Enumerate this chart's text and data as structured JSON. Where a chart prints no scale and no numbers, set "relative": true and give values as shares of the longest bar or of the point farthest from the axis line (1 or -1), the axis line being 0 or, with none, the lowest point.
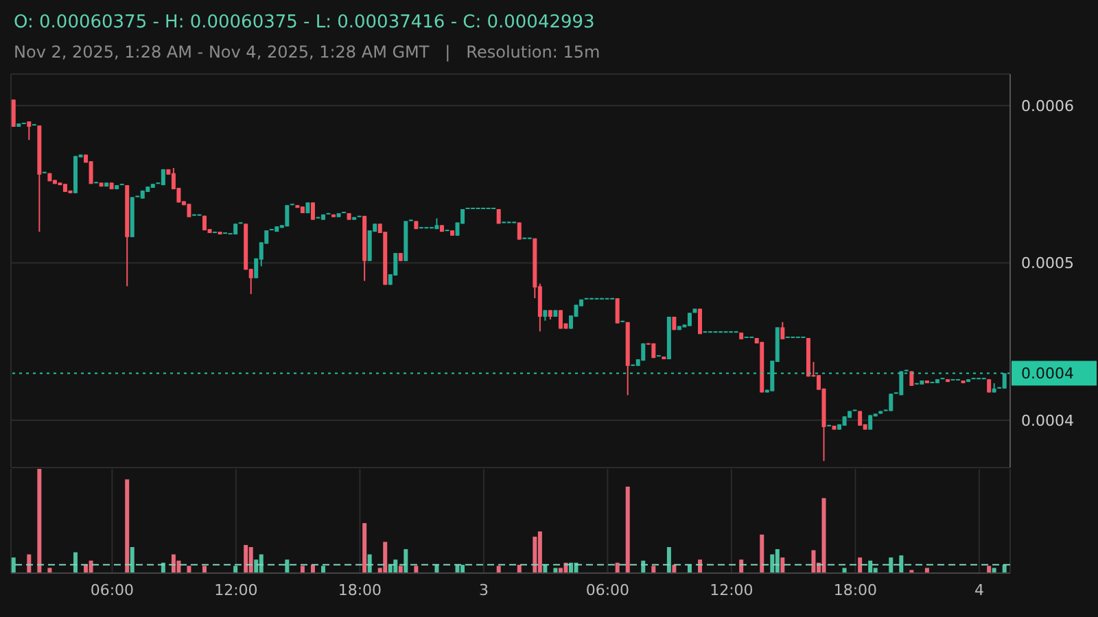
{
  "chart_data": [
    {
      "type": "candlestick",
      "title": "O: 0.00060375 - H: 0.00060375 - L: 0.00037416 - C: 0.00042993",
      "subtitle": "Nov 2, 2025, 1:28 AM - Nov 4, 2025, 1:28 AM GMT   |   Resolution: 15m",
      "x": [
        "2025-11-02T01:15",
        "2025-11-02T01:30",
        "2025-11-02T01:45",
        "2025-11-02T02:00",
        "2025-11-02T02:15",
        "2025-11-02T02:30",
        "2025-11-02T02:45",
        "2025-11-02T03:00",
        "2025-11-02T03:15",
        "2025-11-02T03:30",
        "2025-11-02T03:45",
        "2025-11-02T04:00",
        "2025-11-02T04:15",
        "2025-11-02T04:30",
        "2025-11-02T04:45",
        "2025-11-02T05:00",
        "2025-11-02T05:15",
        "2025-11-02T05:30",
        "2025-11-02T05:45",
        "2025-11-02T06:00",
        "2025-11-02T06:15",
        "2025-11-02T06:30",
        "2025-11-02T06:45",
        "2025-11-02T07:00",
        "2025-11-02T07:15",
        "2025-11-02T07:30",
        "2025-11-02T07:45",
        "2025-11-02T08:00",
        "2025-11-02T08:15",
        "2025-11-02T08:30",
        "2025-11-02T08:45",
        "2025-11-02T09:00",
        "2025-11-02T09:15",
        "2025-11-02T09:30",
        "2025-11-02T09:45",
        "2025-11-02T10:00",
        "2025-11-02T10:15",
        "2025-11-02T10:30",
        "2025-11-02T10:45",
        "2025-11-02T11:00",
        "2025-11-02T11:15",
        "2025-11-02T11:30",
        "2025-11-02T11:45",
        "2025-11-02T12:00",
        "2025-11-02T12:15",
        "2025-11-02T12:30",
        "2025-11-02T12:45",
        "2025-11-02T13:00",
        "2025-11-02T13:15",
        "2025-11-02T13:30",
        "2025-11-02T13:45",
        "2025-11-02T14:00",
        "2025-11-02T14:15",
        "2025-11-02T14:30",
        "2025-11-02T14:45",
        "2025-11-02T15:00",
        "2025-11-02T15:15",
        "2025-11-02T15:30",
        "2025-11-02T15:45",
        "2025-11-02T16:00",
        "2025-11-02T16:15",
        "2025-11-02T16:30",
        "2025-11-02T16:45",
        "2025-11-02T17:00",
        "2025-11-02T17:15",
        "2025-11-02T17:30",
        "2025-11-02T17:45",
        "2025-11-02T18:00",
        "2025-11-02T18:15",
        "2025-11-02T18:30",
        "2025-11-02T18:45",
        "2025-11-02T19:00",
        "2025-11-02T19:15",
        "2025-11-02T19:30",
        "2025-11-02T19:45",
        "2025-11-02T20:00",
        "2025-11-02T20:15",
        "2025-11-02T20:30",
        "2025-11-02T20:45",
        "2025-11-02T21:00",
        "2025-11-02T21:15",
        "2025-11-02T21:30",
        "2025-11-02T21:45",
        "2025-11-02T22:00",
        "2025-11-02T22:15",
        "2025-11-02T22:30",
        "2025-11-02T22:45",
        "2025-11-02T23:00",
        "2025-11-02T23:15",
        "2025-11-02T23:30",
        "2025-11-02T23:45",
        "2025-11-03T00:00",
        "2025-11-03T00:15",
        "2025-11-03T00:30",
        "2025-11-03T00:45",
        "2025-11-03T01:00",
        "2025-11-03T01:15",
        "2025-11-03T01:30",
        "2025-11-03T01:45",
        "2025-11-03T02:00",
        "2025-11-03T02:15",
        "2025-11-03T02:30",
        "2025-11-03T02:45",
        "2025-11-03T03:00",
        "2025-11-03T03:15",
        "2025-11-03T03:30",
        "2025-11-03T03:45",
        "2025-11-03T04:00",
        "2025-11-03T04:15",
        "2025-11-03T04:30",
        "2025-11-03T04:45",
        "2025-11-03T05:00",
        "2025-11-03T05:15",
        "2025-11-03T05:30",
        "2025-11-03T05:45",
        "2025-11-03T06:00",
        "2025-11-03T06:15",
        "2025-11-03T06:30",
        "2025-11-03T06:45",
        "2025-11-03T07:00",
        "2025-11-03T07:15",
        "2025-11-03T07:30",
        "2025-11-03T07:45",
        "2025-11-03T08:00",
        "2025-11-03T08:15",
        "2025-11-03T08:30",
        "2025-11-03T08:45",
        "2025-11-03T09:00",
        "2025-11-03T09:15",
        "2025-11-03T09:30",
        "2025-11-03T09:45",
        "2025-11-03T10:00",
        "2025-11-03T10:15",
        "2025-11-03T10:30",
        "2025-11-03T10:45",
        "2025-11-03T11:00",
        "2025-11-03T11:15",
        "2025-11-03T11:30",
        "2025-11-03T11:45",
        "2025-11-03T12:00",
        "2025-11-03T12:15",
        "2025-11-03T12:30",
        "2025-11-03T12:45",
        "2025-11-03T13:00",
        "2025-11-03T13:15",
        "2025-11-03T13:30",
        "2025-11-03T13:45",
        "2025-11-03T14:00",
        "2025-11-03T14:15",
        "2025-11-03T14:30",
        "2025-11-03T14:45",
        "2025-11-03T15:00",
        "2025-11-03T15:15",
        "2025-11-03T15:30",
        "2025-11-03T15:45",
        "2025-11-03T16:00",
        "2025-11-03T16:15",
        "2025-11-03T16:30",
        "2025-11-03T16:45",
        "2025-11-03T17:00",
        "2025-11-03T17:15",
        "2025-11-03T17:30",
        "2025-11-03T17:45",
        "2025-11-03T18:00",
        "2025-11-03T18:15",
        "2025-11-03T18:30",
        "2025-11-03T18:45",
        "2025-11-03T19:00",
        "2025-11-03T19:15",
        "2025-11-03T19:30",
        "2025-11-03T19:45",
        "2025-11-03T20:00",
        "2025-11-03T20:15",
        "2025-11-03T20:30",
        "2025-11-03T20:45",
        "2025-11-03T21:00",
        "2025-11-03T21:15",
        "2025-11-03T21:30",
        "2025-11-03T21:45",
        "2025-11-03T22:00",
        "2025-11-03T22:15",
        "2025-11-03T22:30",
        "2025-11-03T22:45",
        "2025-11-03T23:00",
        "2025-11-03T23:15",
        "2025-11-03T23:30",
        "2025-11-03T23:45",
        "2025-11-04T00:00",
        "2025-11-04T00:15",
        "2025-11-04T00:30",
        "2025-11-04T00:45",
        "2025-11-04T01:00",
        "2025-11-04T01:15"
      ],
      "ohlc": [
        [
          0.00060375,
          0.00060375,
          0.0005865,
          0.0005865
        ],
        [
          0.0005865,
          0.0005886,
          0.0005865,
          0.0005886
        ],
        [
          0.0005882,
          0.000589,
          0.0005882,
          0.000589
        ],
        [
          0.0005899,
          0.0005899,
          0.0005781,
          0.0005865
        ],
        [
          0.0005873,
          0.0005873,
          0.0005873,
          0.0005873
        ],
        [
          0.0005873,
          0.0005873,
          0.0005198,
          0.0005561
        ],
        [
          0.000557,
          0.000557,
          0.000557,
          0.000557
        ],
        [
          0.000557,
          0.000557,
          0.0005519,
          0.0005519
        ],
        [
          0.0005527,
          0.0005527,
          0.0005502,
          0.0005502
        ],
        [
          0.000551,
          0.000551,
          0.0005494,
          0.0005494
        ],
        [
          0.0005502,
          0.0005502,
          0.0005451,
          0.0005451
        ],
        [
          0.000546,
          0.000546,
          0.0005443,
          0.0005443
        ],
        [
          0.0005443,
          0.0005679,
          0.0005443,
          0.0005679
        ],
        [
          0.0005671,
          0.0005688,
          0.0005671,
          0.0005688
        ],
        [
          0.0005688,
          0.0005688,
          0.0005637,
          0.0005637
        ],
        [
          0.0005646,
          0.0005646,
          0.0005502,
          0.0005502
        ],
        [
          0.0005506,
          0.0005506,
          0.0005506,
          0.0005506
        ],
        [
          0.000551,
          0.000551,
          0.0005485,
          0.0005485
        ],
        [
          0.0005485,
          0.000551,
          0.0005485,
          0.000551
        ],
        [
          0.000551,
          0.000551,
          0.0005468,
          0.0005468
        ],
        [
          0.0005468,
          0.0005494,
          0.0005468,
          0.0005494
        ],
        [
          0.0005494,
          0.0005494,
          0.0005494,
          0.0005494
        ],
        [
          0.0005494,
          0.0005494,
          0.0004852,
          0.0005164
        ],
        [
          0.0005164,
          0.0005418,
          0.0005164,
          0.0005418
        ],
        [
          0.0005418,
          0.0005418,
          0.0005418,
          0.0005418
        ],
        [
          0.0005409,
          0.000546,
          0.0005409,
          0.000546
        ],
        [
          0.0005451,
          0.0005485,
          0.0005451,
          0.0005485
        ],
        [
          0.0005477,
          0.0005502,
          0.0005477,
          0.0005502
        ],
        [
          0.0005502,
          0.0005502,
          0.0005502,
          0.0005502
        ],
        [
          0.0005494,
          0.0005595,
          0.0005494,
          0.0005595
        ],
        [
          0.0005595,
          0.0005595,
          0.0005561,
          0.0005561
        ],
        [
          0.000557,
          0.0005603,
          0.0005468,
          0.0005468
        ],
        [
          0.0005477,
          0.0005477,
          0.0005384,
          0.0005384
        ],
        [
          0.0005392,
          0.0005392,
          0.0005367,
          0.0005367
        ],
        [
          0.0005375,
          0.0005375,
          0.0005291,
          0.0005291
        ],
        [
          0.00053,
          0.00053,
          0.00053,
          0.00053
        ],
        [
          0.00053,
          0.00053,
          0.00053,
          0.00053
        ],
        [
          0.00053,
          0.00053,
          0.0005207,
          0.0005207
        ],
        [
          0.0005215,
          0.0005215,
          0.000519,
          0.000519
        ],
        [
          0.000519,
          0.000519,
          0.000519,
          0.000519
        ],
        [
          0.0005198,
          0.0005198,
          0.0005181,
          0.0005181
        ],
        [
          0.0005185,
          0.0005185,
          0.0005185,
          0.0005185
        ],
        [
          0.0005181,
          0.0005181,
          0.0005181,
          0.0005181
        ],
        [
          0.0005181,
          0.0005249,
          0.0005181,
          0.0005249
        ],
        [
          0.0005249,
          0.0005249,
          0.0005249,
          0.0005249
        ],
        [
          0.0005249,
          0.0005249,
          0.0004957,
          0.0004957
        ],
        [
          0.0004962,
          0.0004962,
          0.0004802,
          0.0004903
        ],
        [
          0.0004903,
          0.0005029,
          0.0004903,
          0.0005029
        ],
        [
          0.0005021,
          0.0005131,
          0.0004979,
          0.0005131
        ],
        [
          0.0005122,
          0.0005207,
          0.0005122,
          0.0005207
        ],
        [
          0.0005207,
          0.0005207,
          0.0005207,
          0.0005207
        ],
        [
          0.0005198,
          0.0005232,
          0.0005198,
          0.0005232
        ],
        [
          0.0005223,
          0.000524,
          0.0005223,
          0.000524
        ],
        [
          0.0005232,
          0.0005367,
          0.0005232,
          0.0005367
        ],
        [
          0.0005367,
          0.0005367,
          0.0005367,
          0.0005367
        ],
        [
          0.0005367,
          0.0005367,
          0.000535,
          0.000535
        ],
        [
          0.0005358,
          0.0005358,
          0.0005316,
          0.0005316
        ],
        [
          0.0005316,
          0.0005384,
          0.0005316,
          0.0005384
        ],
        [
          0.0005384,
          0.0005384,
          0.0005274,
          0.0005274
        ],
        [
          0.0005283,
          0.0005283,
          0.0005283,
          0.0005283
        ],
        [
          0.0005274,
          0.0005308,
          0.0005274,
          0.0005308
        ],
        [
          0.0005308,
          0.0005308,
          0.0005308,
          0.0005308
        ],
        [
          0.0005308,
          0.0005308,
          0.0005291,
          0.0005291
        ],
        [
          0.0005291,
          0.0005316,
          0.0005291,
          0.0005316
        ],
        [
          0.0005316,
          0.0005316,
          0.0005316,
          0.0005316
        ],
        [
          0.0005316,
          0.0005316,
          0.0005274,
          0.0005274
        ],
        [
          0.0005274,
          0.0005291,
          0.0005274,
          0.0005291
        ],
        [
          0.0005291,
          0.0005291,
          0.0005291,
          0.0005291
        ],
        [
          0.0005299,
          0.0005299,
          0.0004886,
          0.0005012
        ],
        [
          0.0005012,
          0.0005207,
          0.0005012,
          0.0005207
        ],
        [
          0.0005198,
          0.0005249,
          0.0005198,
          0.0005249
        ],
        [
          0.0005249,
          0.0005249,
          0.000519,
          0.000519
        ],
        [
          0.0005198,
          0.0005198,
          0.0004861,
          0.0004861
        ],
        [
          0.0004861,
          0.0004928,
          0.0004861,
          0.0004928
        ],
        [
          0.000492,
          0.0005063,
          0.000492,
          0.0005063
        ],
        [
          0.0005063,
          0.0005063,
          0.0005012,
          0.0005012
        ],
        [
          0.0005012,
          0.0005266,
          0.0005012,
          0.0005266
        ],
        [
          0.0005266,
          0.0005266,
          0.0005266,
          0.0005266
        ],
        [
          0.0005266,
          0.0005266,
          0.0005215,
          0.0005215
        ],
        [
          0.0005219,
          0.0005219,
          0.0005219,
          0.0005219
        ],
        [
          0.0005219,
          0.0005219,
          0.0005219,
          0.0005219
        ],
        [
          0.0005219,
          0.0005219,
          0.0005219,
          0.0005219
        ],
        [
          0.0005215,
          0.0005283,
          0.0005215,
          0.000524
        ],
        [
          0.000524,
          0.000524,
          0.0005198,
          0.0005198
        ],
        [
          0.0005202,
          0.0005202,
          0.0005202,
          0.0005202
        ],
        [
          0.0005207,
          0.0005207,
          0.0005173,
          0.0005173
        ],
        [
          0.0005173,
          0.0005257,
          0.0005173,
          0.0005257
        ],
        [
          0.0005249,
          0.0005342,
          0.0005249,
          0.0005342
        ],
        [
          0.0005342,
          0.0005342,
          0.0005342,
          0.0005342
        ],
        [
          0.0005342,
          0.0005342,
          0.0005342,
          0.0005342
        ],
        [
          0.0005342,
          0.0005342,
          0.0005342,
          0.0005342
        ],
        [
          0.0005342,
          0.0005342,
          0.0005342,
          0.0005342
        ],
        [
          0.0005342,
          0.0005342,
          0.0005342,
          0.0005342
        ],
        [
          0.0005342,
          0.0005342,
          0.0005342,
          0.0005342
        ],
        [
          0.0005342,
          0.0005342,
          0.0005249,
          0.0005249
        ],
        [
          0.0005253,
          0.0005253,
          0.0005253,
          0.0005253
        ],
        [
          0.0005253,
          0.0005253,
          0.0005253,
          0.0005253
        ],
        [
          0.0005253,
          0.0005253,
          0.0005253,
          0.0005253
        ],
        [
          0.0005257,
          0.0005257,
          0.0005148,
          0.0005148
        ],
        [
          0.0005152,
          0.0005152,
          0.0005152,
          0.0005152
        ],
        [
          0.0005152,
          0.0005152,
          0.0005152,
          0.0005152
        ],
        [
          0.0005156,
          0.0005156,
          0.0004776,
          0.0004844
        ],
        [
          0.0004852,
          0.0004869,
          0.0004565,
          0.0004658
        ],
        [
          0.0004658,
          0.00047,
          0.0004633,
          0.00047
        ],
        [
          0.00047,
          0.00047,
          0.0004641,
          0.0004658
        ],
        [
          0.0004658,
          0.00047,
          0.0004658,
          0.00047
        ],
        [
          0.00047,
          0.00047,
          0.0004582,
          0.0004582
        ],
        [
          0.0004616,
          0.0004616,
          0.0004582,
          0.0004582
        ],
        [
          0.0004582,
          0.0004666,
          0.0004582,
          0.0004666
        ],
        [
          0.0004658,
          0.0004734,
          0.0004658,
          0.0004734
        ],
        [
          0.0004725,
          0.0004768,
          0.0004725,
          0.0004768
        ],
        [
          0.0004768,
          0.0004768,
          0.0004768,
          0.0004768
        ],
        [
          0.0004768,
          0.0004768,
          0.0004768,
          0.0004768
        ],
        [
          0.0004768,
          0.0004768,
          0.0004768,
          0.0004768
        ],
        [
          0.0004768,
          0.0004768,
          0.0004768,
          0.0004768
        ],
        [
          0.0004768,
          0.0004768,
          0.0004768,
          0.0004768
        ],
        [
          0.0004768,
          0.0004768,
          0.0004768,
          0.0004768
        ],
        [
          0.0004776,
          0.0004776,
          0.0004616,
          0.0004616
        ],
        [
          0.0004624,
          0.0004624,
          0.0004624,
          0.0004624
        ],
        [
          0.0004624,
          0.0004624,
          0.000416,
          0.0004346
        ],
        [
          0.0004346,
          0.0004346,
          0.0004346,
          0.0004346
        ],
        [
          0.0004346,
          0.0004388,
          0.0004346,
          0.0004388
        ],
        [
          0.0004379,
          0.0004489,
          0.0004379,
          0.0004489
        ],
        [
          0.0004489,
          0.0004489,
          0.0004481,
          0.0004481
        ],
        [
          0.0004489,
          0.0004489,
          0.0004396,
          0.0004396
        ],
        [
          0.0004405,
          0.0004405,
          0.0004405,
          0.0004405
        ],
        [
          0.0004405,
          0.0004405,
          0.0004388,
          0.0004388
        ],
        [
          0.0004388,
          0.0004658,
          0.0004388,
          0.0004658
        ],
        [
          0.0004658,
          0.0004658,
          0.0004574,
          0.0004574
        ],
        [
          0.0004574,
          0.0004599,
          0.0004574,
          0.0004599
        ],
        [
          0.0004591,
          0.0004608,
          0.0004591,
          0.0004608
        ],
        [
          0.0004599,
          0.0004683,
          0.0004599,
          0.0004683
        ],
        [
          0.0004683,
          0.0004709,
          0.0004683,
          0.0004709
        ],
        [
          0.0004709,
          0.0004709,
          0.0004548,
          0.0004548
        ],
        [
          0.0004557,
          0.0004557,
          0.0004557,
          0.0004557
        ],
        [
          0.0004557,
          0.0004557,
          0.0004557,
          0.0004557
        ],
        [
          0.0004557,
          0.0004557,
          0.0004557,
          0.0004557
        ],
        [
          0.0004557,
          0.0004557,
          0.0004557,
          0.0004557
        ],
        [
          0.0004557,
          0.0004557,
          0.0004557,
          0.0004557
        ],
        [
          0.0004557,
          0.0004557,
          0.0004557,
          0.0004557
        ],
        [
          0.0004557,
          0.0004557,
          0.0004557,
          0.0004557
        ],
        [
          0.0004557,
          0.0004557,
          0.0004515,
          0.0004515
        ],
        [
          0.0004523,
          0.0004523,
          0.0004523,
          0.0004523
        ],
        [
          0.0004523,
          0.0004523,
          0.0004523,
          0.0004523
        ],
        [
          0.0004523,
          0.0004523,
          0.0004489,
          0.0004489
        ],
        [
          0.0004498,
          0.0004498,
          0.0004177,
          0.0004177
        ],
        [
          0.0004177,
          0.0004194,
          0.0004177,
          0.0004194
        ],
        [
          0.0004185,
          0.0004379,
          0.0004185,
          0.0004379
        ],
        [
          0.0004371,
          0.0004591,
          0.0004371,
          0.0004591
        ],
        [
          0.0004591,
          0.0004624,
          0.0004515,
          0.0004515
        ],
        [
          0.0004523,
          0.0004523,
          0.0004523,
          0.0004523
        ],
        [
          0.0004523,
          0.0004523,
          0.0004523,
          0.0004523
        ],
        [
          0.0004523,
          0.0004523,
          0.0004523,
          0.0004523
        ],
        [
          0.0004523,
          0.0004523,
          0.0004523,
          0.0004523
        ],
        [
          0.0004523,
          0.0004523,
          0.0004278,
          0.0004278
        ],
        [
          0.0004287,
          0.0004371,
          0.0004278,
          0.0004278
        ],
        [
          0.0004287,
          0.0004287,
          0.0004194,
          0.0004194
        ],
        [
          0.0004202,
          0.0004202,
          0.00037416,
          0.0003957
        ],
        [
          0.0003962,
          0.0003962,
          0.0003962,
          0.0003962
        ],
        [
          0.0003966,
          0.0003966,
          0.0003941,
          0.0003941
        ],
        [
          0.0003941,
          0.0003975,
          0.0003941,
          0.0003975
        ],
        [
          0.0003966,
          0.0004025,
          0.0003966,
          0.0004025
        ],
        [
          0.0004016,
          0.0004059,
          0.0004016,
          0.0004059
        ],
        [
          0.0004059,
          0.0004059,
          0.0004059,
          0.0004059
        ],
        [
          0.0004059,
          0.0004059,
          0.0003966,
          0.0003966
        ],
        [
          0.0003975,
          0.0003975,
          0.0003941,
          0.0003941
        ],
        [
          0.0003941,
          0.0004033,
          0.0003941,
          0.0004033
        ],
        [
          0.0004025,
          0.0004042,
          0.0004025,
          0.0004042
        ],
        [
          0.0004042,
          0.0004059,
          0.0004042,
          0.0004059
        ],
        [
          0.0004059,
          0.0004059,
          0.0004059,
          0.0004059
        ],
        [
          0.0004059,
          0.0004169,
          0.0004059,
          0.0004169
        ],
        [
          0.0004169,
          0.0004169,
          0.0004169,
          0.0004169
        ],
        [
          0.000416,
          0.0004312,
          0.000416,
          0.0004312
        ],
        [
          0.0004312,
          0.0004312,
          0.0004312,
          0.0004312
        ],
        [
          0.0004312,
          0.0004312,
          0.0004219,
          0.0004219
        ],
        [
          0.0004228,
          0.0004228,
          0.0004228,
          0.0004228
        ],
        [
          0.0004228,
          0.0004253,
          0.0004228,
          0.0004253
        ],
        [
          0.0004253,
          0.0004253,
          0.0004236,
          0.0004236
        ],
        [
          0.0004236,
          0.0004236,
          0.0004236,
          0.0004236
        ],
        [
          0.0004236,
          0.0004261,
          0.0004236,
          0.0004261
        ],
        [
          0.0004261,
          0.0004261,
          0.0004261,
          0.0004261
        ],
        [
          0.0004261,
          0.0004261,
          0.0004244,
          0.0004244
        ],
        [
          0.0004253,
          0.0004253,
          0.0004253,
          0.0004253
        ],
        [
          0.0004253,
          0.0004253,
          0.0004253,
          0.0004253
        ],
        [
          0.0004253,
          0.0004253,
          0.0004236,
          0.0004236
        ],
        [
          0.0004244,
          0.0004261,
          0.0004244,
          0.0004261
        ],
        [
          0.0004261,
          0.0004261,
          0.0004261,
          0.0004261
        ],
        [
          0.0004261,
          0.0004261,
          0.0004261,
          0.0004261
        ],
        [
          0.0004261,
          0.0004261,
          0.0004261,
          0.0004261
        ],
        [
          0.0004261,
          0.0004261,
          0.0004177,
          0.0004177
        ],
        [
          0.0004177,
          0.0004236,
          0.0004177,
          0.0004202
        ],
        [
          0.0004202,
          0.0004202,
          0.0004202,
          0.0004202
        ],
        [
          0.0004202,
          0.00042993,
          0.0004202,
          0.00042993
        ]
      ],
      "colors": [
        "#f7525f",
        "#22ab94",
        "#22ab94",
        "#f7525f",
        "#22ab94",
        "#f7525f",
        "#22ab94",
        "#f7525f",
        "#f7525f",
        "#f7525f",
        "#f7525f",
        "#f7525f",
        "#22ab94",
        "#22ab94",
        "#f7525f",
        "#f7525f",
        "#22ab94",
        "#f7525f",
        "#22ab94",
        "#f7525f",
        "#22ab94",
        "#22ab94",
        "#f7525f",
        "#22ab94",
        "#22ab94",
        "#22ab94",
        "#22ab94",
        "#22ab94",
        "#22ab94",
        "#22ab94",
        "#f7525f",
        "#f7525f",
        "#f7525f",
        "#f7525f",
        "#f7525f",
        "#22ab94",
        "#22ab94",
        "#f7525f",
        "#f7525f",
        "#22ab94",
        "#f7525f",
        "#22ab94",
        "#22ab94",
        "#22ab94",
        "#22ab94",
        "#f7525f",
        "#f7525f",
        "#22ab94",
        "#22ab94",
        "#22ab94",
        "#22ab94",
        "#22ab94",
        "#22ab94",
        "#22ab94",
        "#22ab94",
        "#f7525f",
        "#f7525f",
        "#22ab94",
        "#f7525f",
        "#22ab94",
        "#22ab94",
        "#22ab94",
        "#f7525f",
        "#22ab94",
        "#22ab94",
        "#f7525f",
        "#22ab94",
        "#22ab94",
        "#f7525f",
        "#22ab94",
        "#22ab94",
        "#f7525f",
        "#f7525f",
        "#22ab94",
        "#22ab94",
        "#f7525f",
        "#22ab94",
        "#22ab94",
        "#f7525f",
        "#22ab94",
        "#22ab94",
        "#22ab94",
        "#22ab94",
        "#f7525f",
        "#22ab94",
        "#f7525f",
        "#22ab94",
        "#22ab94",
        "#22ab94",
        "#22ab94",
        "#22ab94",
        "#22ab94",
        "#22ab94",
        "#22ab94",
        "#f7525f",
        "#22ab94",
        "#22ab94",
        "#22ab94",
        "#f7525f",
        "#22ab94",
        "#22ab94",
        "#f7525f",
        "#f7525f",
        "#22ab94",
        "#f7525f",
        "#22ab94",
        "#f7525f",
        "#f7525f",
        "#22ab94",
        "#22ab94",
        "#22ab94",
        "#22ab94",
        "#22ab94",
        "#22ab94",
        "#22ab94",
        "#22ab94",
        "#22ab94",
        "#f7525f",
        "#22ab94",
        "#f7525f",
        "#22ab94",
        "#22ab94",
        "#22ab94",
        "#f7525f",
        "#f7525f",
        "#22ab94",
        "#f7525f",
        "#22ab94",
        "#f7525f",
        "#22ab94",
        "#22ab94",
        "#22ab94",
        "#22ab94",
        "#f7525f",
        "#22ab94",
        "#22ab94",
        "#22ab94",
        "#22ab94",
        "#22ab94",
        "#22ab94",
        "#22ab94",
        "#f7525f",
        "#22ab94",
        "#22ab94",
        "#f7525f",
        "#f7525f",
        "#22ab94",
        "#22ab94",
        "#22ab94",
        "#f7525f",
        "#22ab94",
        "#22ab94",
        "#22ab94",
        "#22ab94",
        "#f7525f",
        "#f7525f",
        "#f7525f",
        "#f7525f",
        "#22ab94",
        "#f7525f",
        "#22ab94",
        "#22ab94",
        "#22ab94",
        "#22ab94",
        "#f7525f",
        "#f7525f",
        "#22ab94",
        "#22ab94",
        "#22ab94",
        "#22ab94",
        "#22ab94",
        "#22ab94",
        "#22ab94",
        "#22ab94",
        "#f7525f",
        "#22ab94",
        "#22ab94",
        "#f7525f",
        "#22ab94",
        "#22ab94",
        "#22ab94",
        "#f7525f",
        "#22ab94",
        "#22ab94",
        "#f7525f",
        "#22ab94",
        "#22ab94",
        "#22ab94",
        "#22ab94",
        "#f7525f",
        "#22ab94",
        "#22ab94",
        "#22ab94"
      ],
      "xlim": [
        "2025-11-02T01:06",
        "2025-11-04T01:30"
      ],
      "xticks": [
        {
          "value": "2025-11-02T06:00",
          "label": null
        },
        {
          "value": "2025-11-02T12:00",
          "label": null
        },
        {
          "value": "2025-11-02T18:00",
          "label": null
        },
        {
          "value": "2025-11-03T00:00",
          "label": null
        },
        {
          "value": "2025-11-03T06:00",
          "label": null
        },
        {
          "value": "2025-11-03T12:00",
          "label": null
        },
        {
          "value": "2025-11-03T18:00",
          "label": null
        },
        {
          "value": "2025-11-04T00:00",
          "label": null
        }
      ],
      "ylim": [
        0.00037,
        0.00062
      ],
      "yticks": [
        0.0004,
        0.0005,
        0.0006
      ],
      "grid": true,
      "tick_labels": "y",
      "ref_lines": [
        {
          "axis": "y",
          "value": 0.00042993,
          "label": "0.0004",
          "color": "#26c6a0",
          "line_style": "dotted"
        }
      ]
    },
    {
      "type": "bar",
      "relative": true,
      "series": [
        {
          "color": "#4fc3a1",
          "x": [
            "2025-11-02T01:15",
            "2025-11-02T04:15",
            "2025-11-02T07:00",
            "2025-11-02T08:30",
            "2025-11-02T12:00",
            "2025-11-02T13:00",
            "2025-11-02T13:15",
            "2025-11-02T14:30",
            "2025-11-02T16:15",
            "2025-11-02T18:30",
            "2025-11-02T19:30",
            "2025-11-02T19:45",
            "2025-11-02T20:15",
            "2025-11-02T21:45",
            "2025-11-02T22:45",
            "2025-11-02T23:00",
            "2025-11-03T03:00",
            "2025-11-03T03:30",
            "2025-11-03T04:15",
            "2025-11-03T04:30",
            "2025-11-03T07:45",
            "2025-11-03T09:00",
            "2025-11-03T10:00",
            "2025-11-03T14:00",
            "2025-11-03T14:15",
            "2025-11-03T17:30",
            "2025-11-03T18:45",
            "2025-11-03T19:00",
            "2025-11-03T19:45",
            "2025-11-03T20:15",
            "2025-11-04T00:45",
            "2025-11-04T01:15"
          ],
          "values": [
            0.15,
            0.2,
            0.25,
            0.1,
            0.07,
            0.13,
            0.18,
            0.13,
            0.07,
            0.18,
            0.08,
            0.13,
            0.23,
            0.08,
            0.08,
            0.08,
            0.08,
            0.05,
            0.1,
            0.1,
            0.12,
            0.25,
            0.08,
            0.18,
            0.23,
            0.05,
            0.12,
            0.05,
            0.15,
            0.17,
            0.05,
            0.08
          ]
        },
        {
          "color": "#e9697b",
          "x": [
            "2025-11-02T02:00",
            "2025-11-02T02:30",
            "2025-11-02T03:00",
            "2025-11-02T04:45",
            "2025-11-02T05:00",
            "2025-11-02T06:45",
            "2025-11-02T09:00",
            "2025-11-02T09:15",
            "2025-11-02T09:45",
            "2025-11-02T10:30",
            "2025-11-02T12:30",
            "2025-11-02T12:45",
            "2025-11-02T15:15",
            "2025-11-02T15:45",
            "2025-11-02T18:15",
            "2025-11-02T19:00",
            "2025-11-02T19:15",
            "2025-11-02T20:00",
            "2025-11-02T20:45",
            "2025-11-03T00:45",
            "2025-11-03T01:45",
            "2025-11-03T02:30",
            "2025-11-03T02:45",
            "2025-11-03T03:45",
            "2025-11-03T04:00",
            "2025-11-03T06:30",
            "2025-11-03T07:00",
            "2025-11-03T08:15",
            "2025-11-03T09:15",
            "2025-11-03T10:30",
            "2025-11-03T12:30",
            "2025-11-03T13:30",
            "2025-11-03T14:30",
            "2025-11-03T16:00",
            "2025-11-03T16:15",
            "2025-11-03T16:30",
            "2025-11-03T18:15",
            "2025-11-03T20:45",
            "2025-11-03T21:30",
            "2025-11-04T00:30"
          ],
          "values": [
            0.18,
            1,
            0.05,
            0.08,
            0.12,
            0.9,
            0.18,
            0.12,
            0.07,
            0.07,
            0.27,
            0.25,
            0.07,
            0.08,
            0.48,
            0.05,
            0.3,
            0.07,
            0.07,
            0.07,
            0.08,
            0.35,
            0.4,
            0.05,
            0.1,
            0.1,
            0.83,
            0.07,
            0.08,
            0.13,
            0.13,
            0.37,
            0.15,
            0.22,
            0.1,
            0.72,
            0.15,
            0.03,
            0.05,
            0.07
          ]
        }
      ],
      "xlim": [
        "2025-11-02T01:06",
        "2025-11-04T01:30"
      ],
      "xticks": [
        {
          "value": "2025-11-02T06:00",
          "label": "06:00"
        },
        {
          "value": "2025-11-02T12:00",
          "label": "12:00"
        },
        {
          "value": "2025-11-02T18:00",
          "label": "18:00"
        },
        {
          "value": "2025-11-03T00:00",
          "label": "3"
        },
        {
          "value": "2025-11-03T06:00",
          "label": "06:00"
        },
        {
          "value": "2025-11-03T12:00",
          "label": "12:00"
        },
        {
          "value": "2025-11-03T18:00",
          "label": "18:00"
        },
        {
          "value": "2025-11-04T00:00",
          "label": "4"
        }
      ],
      "grid": "x",
      "tick_labels": "x",
      "ref_lines": [
        {
          "axis": "y",
          "value": 0.08,
          "color": "#7fd6bd",
          "line_style": "dashed"
        }
      ]
    }
  ]
}
